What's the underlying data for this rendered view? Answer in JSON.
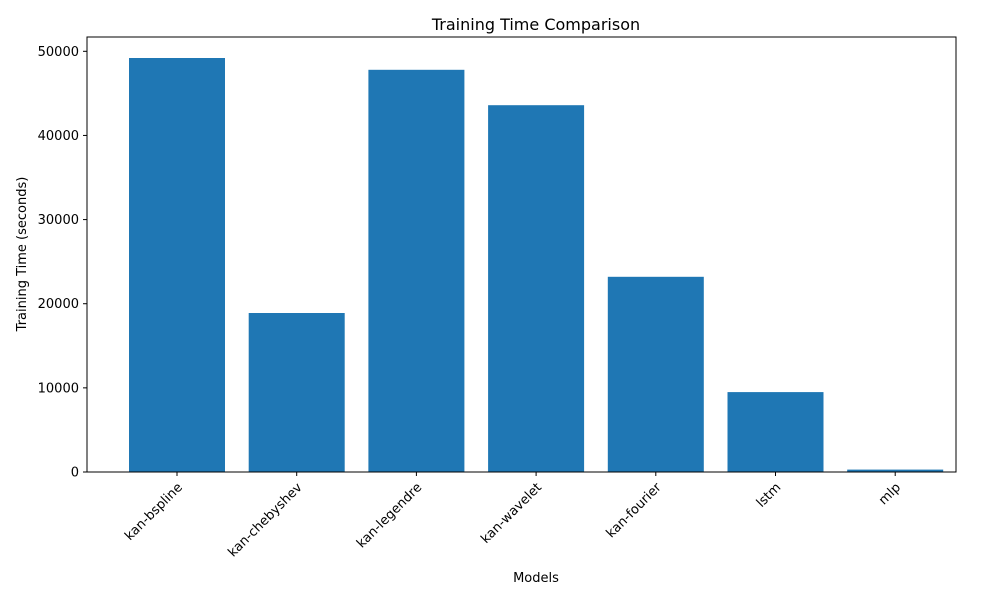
{
  "chart_data": {
    "type": "bar",
    "title": "Training Time Comparison",
    "xlabel": "Models",
    "ylabel": "Training Time (seconds)",
    "categories": [
      "kan-bspline",
      "kan-chebyshev",
      "kan-legendre",
      "kan-wavelet",
      "kan-fourier",
      "lstm",
      "mlp"
    ],
    "values": [
      49200,
      18900,
      47800,
      43600,
      23200,
      9500,
      280
    ],
    "ylim": [
      0,
      51700
    ],
    "yticks": [
      0,
      10000,
      20000,
      30000,
      40000,
      50000
    ],
    "ytick_labels": [
      "0",
      "10000",
      "20000",
      "30000",
      "40000",
      "50000"
    ],
    "grid": false,
    "bar_color": "#1f77b4"
  }
}
